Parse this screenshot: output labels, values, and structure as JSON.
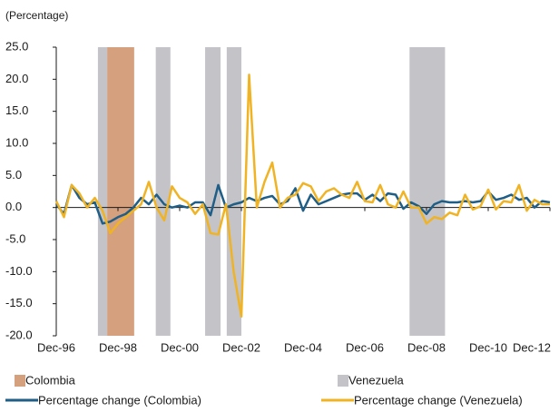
{
  "chart_data": {
    "type": "line",
    "y_label": "(Percentage)",
    "categories": [
      "Dec-96",
      null,
      null,
      null,
      null,
      null,
      null,
      null,
      "Dec-98",
      null,
      null,
      null,
      null,
      null,
      null,
      null,
      "Dec-00",
      null,
      null,
      null,
      null,
      null,
      null,
      null,
      "Dec-02",
      null,
      null,
      null,
      null,
      null,
      null,
      null,
      "Dec-04",
      null,
      null,
      null,
      null,
      null,
      null,
      null,
      "Dec-06",
      null,
      null,
      null,
      null,
      null,
      null,
      null,
      "Dec-08",
      null,
      null,
      null,
      null,
      null,
      null,
      null,
      "Dec-10",
      null,
      null,
      null,
      null,
      null,
      null,
      null,
      "Dec-12"
    ],
    "bands": [
      {
        "name": "Colombia",
        "color": "#d4a07e",
        "periods": [
          [
            6.6,
            10.1
          ]
        ]
      },
      {
        "name": "Venezuela",
        "color": "#c4c4c8",
        "periods": [
          [
            5.4,
            6.6
          ],
          [
            12.9,
            14.8
          ],
          [
            19.3,
            21.3
          ],
          [
            22.1,
            24.0
          ],
          [
            45.8,
            50.4
          ]
        ]
      }
    ],
    "series": [
      {
        "name": "Percentage change (Colombia)",
        "color": "#1f5e86",
        "values": [
          0.5,
          -1,
          3.5,
          1.5,
          0.5,
          0.8,
          -2.5,
          -2.2,
          -1.5,
          -1.0,
          0,
          1.5,
          0.5,
          2,
          0.5,
          0,
          0.3,
          0,
          0.8,
          0.8,
          -1.2,
          3.5,
          0,
          0.5,
          0.8,
          1.5,
          1.0,
          1.5,
          1.8,
          0.5,
          1.0,
          3.0,
          -0.5,
          2,
          0.5,
          1.0,
          1.5,
          2.0,
          2.2,
          2.2,
          1.2,
          2.0,
          1.0,
          2.2,
          2.0,
          -0.2,
          0.8,
          0.2,
          -1.0,
          0.5,
          1.0,
          0.8,
          0.8,
          1.0,
          0.8,
          1.0,
          2.5,
          1.2,
          1.5,
          2.0,
          1.2,
          1.5,
          0,
          1.0,
          0.8
        ]
      },
      {
        "name": "Percentage change (Venezuela)",
        "color": "#f0b323",
        "values": [
          1.0,
          -1.5,
          3.5,
          2.2,
          0,
          1.5,
          -0.5,
          -4.0,
          -2.5,
          -1.5,
          -0.5,
          0.5,
          4.0,
          0,
          -2.0,
          3.3,
          1.5,
          0.8,
          -1.0,
          0.5,
          -4.0,
          -4.2,
          0.5,
          -10.0,
          -17.0,
          20.7,
          0,
          4.0,
          7.0,
          0,
          1.5,
          2.0,
          3.8,
          3.3,
          1.0,
          2.5,
          3.0,
          2.0,
          1.5,
          4.0,
          1.0,
          0.8,
          3.5,
          0.5,
          0,
          2.5,
          0,
          0,
          -2.5,
          -1.5,
          -1.8,
          -0.8,
          -1.2,
          2.0,
          -0.3,
          0.2,
          2.8,
          -0.3,
          1.0,
          0.8,
          3.5,
          -0.5,
          1.2,
          0.5,
          0.5
        ]
      }
    ],
    "ylim": [
      -20,
      25
    ],
    "yticks": [
      {
        "value": -20,
        "label": "-20.0"
      },
      {
        "value": -15,
        "label": "-15.0"
      },
      {
        "value": -10,
        "label": "-10.0"
      },
      {
        "value": -5,
        "label": "-5.0"
      },
      {
        "value": 0,
        "label": "0.0"
      },
      {
        "value": 5,
        "label": "5.0"
      },
      {
        "value": 10,
        "label": "10.0"
      },
      {
        "value": 15,
        "label": "15.0"
      },
      {
        "value": 20,
        "label": "20.0"
      },
      {
        "value": 25,
        "label": "25.0"
      }
    ]
  }
}
